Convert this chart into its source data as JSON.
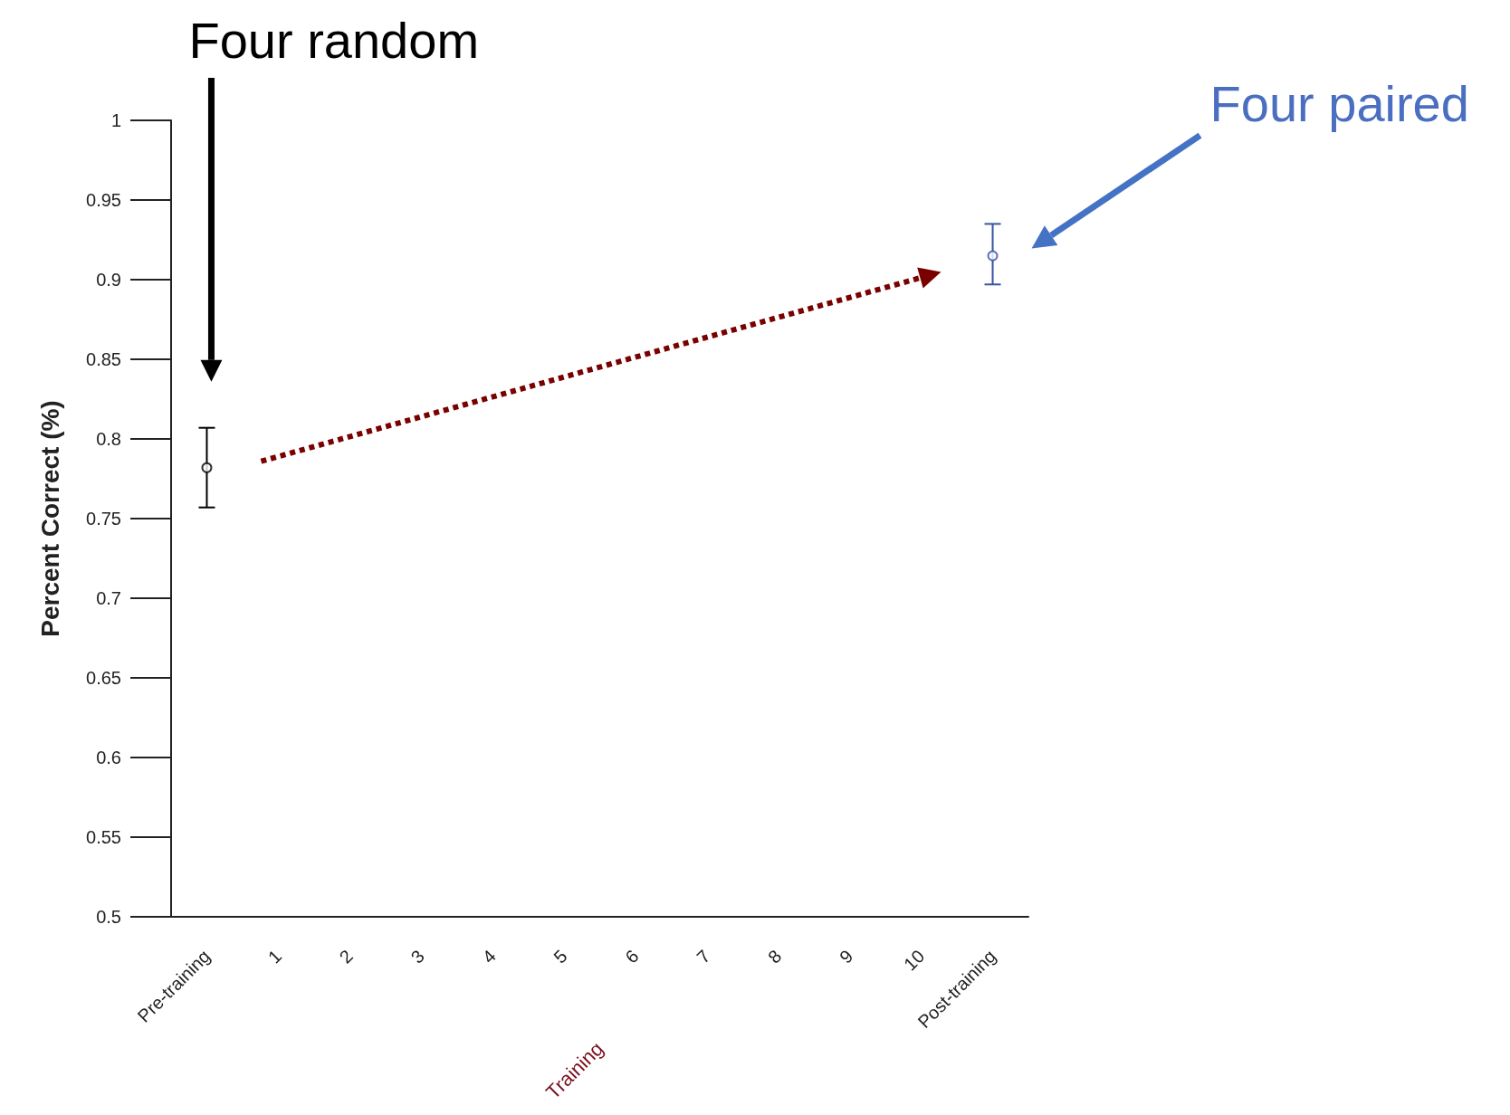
{
  "chart_data": {
    "type": "scatter",
    "ylabel": "Percent Correct (%)",
    "xlabel": "Training",
    "categories": [
      "Pre-training",
      "1",
      "2",
      "3",
      "4",
      "5",
      "6",
      "7",
      "8",
      "9",
      "10",
      "Post-training"
    ],
    "series": [
      {
        "color": "#000000",
        "x": [
          "Pre-training"
        ],
        "values": [
          0.782
        ],
        "errors": [
          [
            0.757,
            0.807
          ]
        ]
      },
      {
        "color": "#3a53a4",
        "x": [
          "Post-training"
        ],
        "values": [
          0.915
        ],
        "errors": [
          [
            0.897,
            0.935
          ]
        ]
      }
    ],
    "ylim": [
      0.5,
      1
    ],
    "yticks": [
      0.5,
      0.55,
      0.6,
      0.65,
      0.7,
      0.75,
      0.8,
      0.85,
      0.9,
      0.95,
      1
    ],
    "annotations": [
      "Four random",
      "Four paired"
    ],
    "marker": "circle",
    "grid": false
  }
}
